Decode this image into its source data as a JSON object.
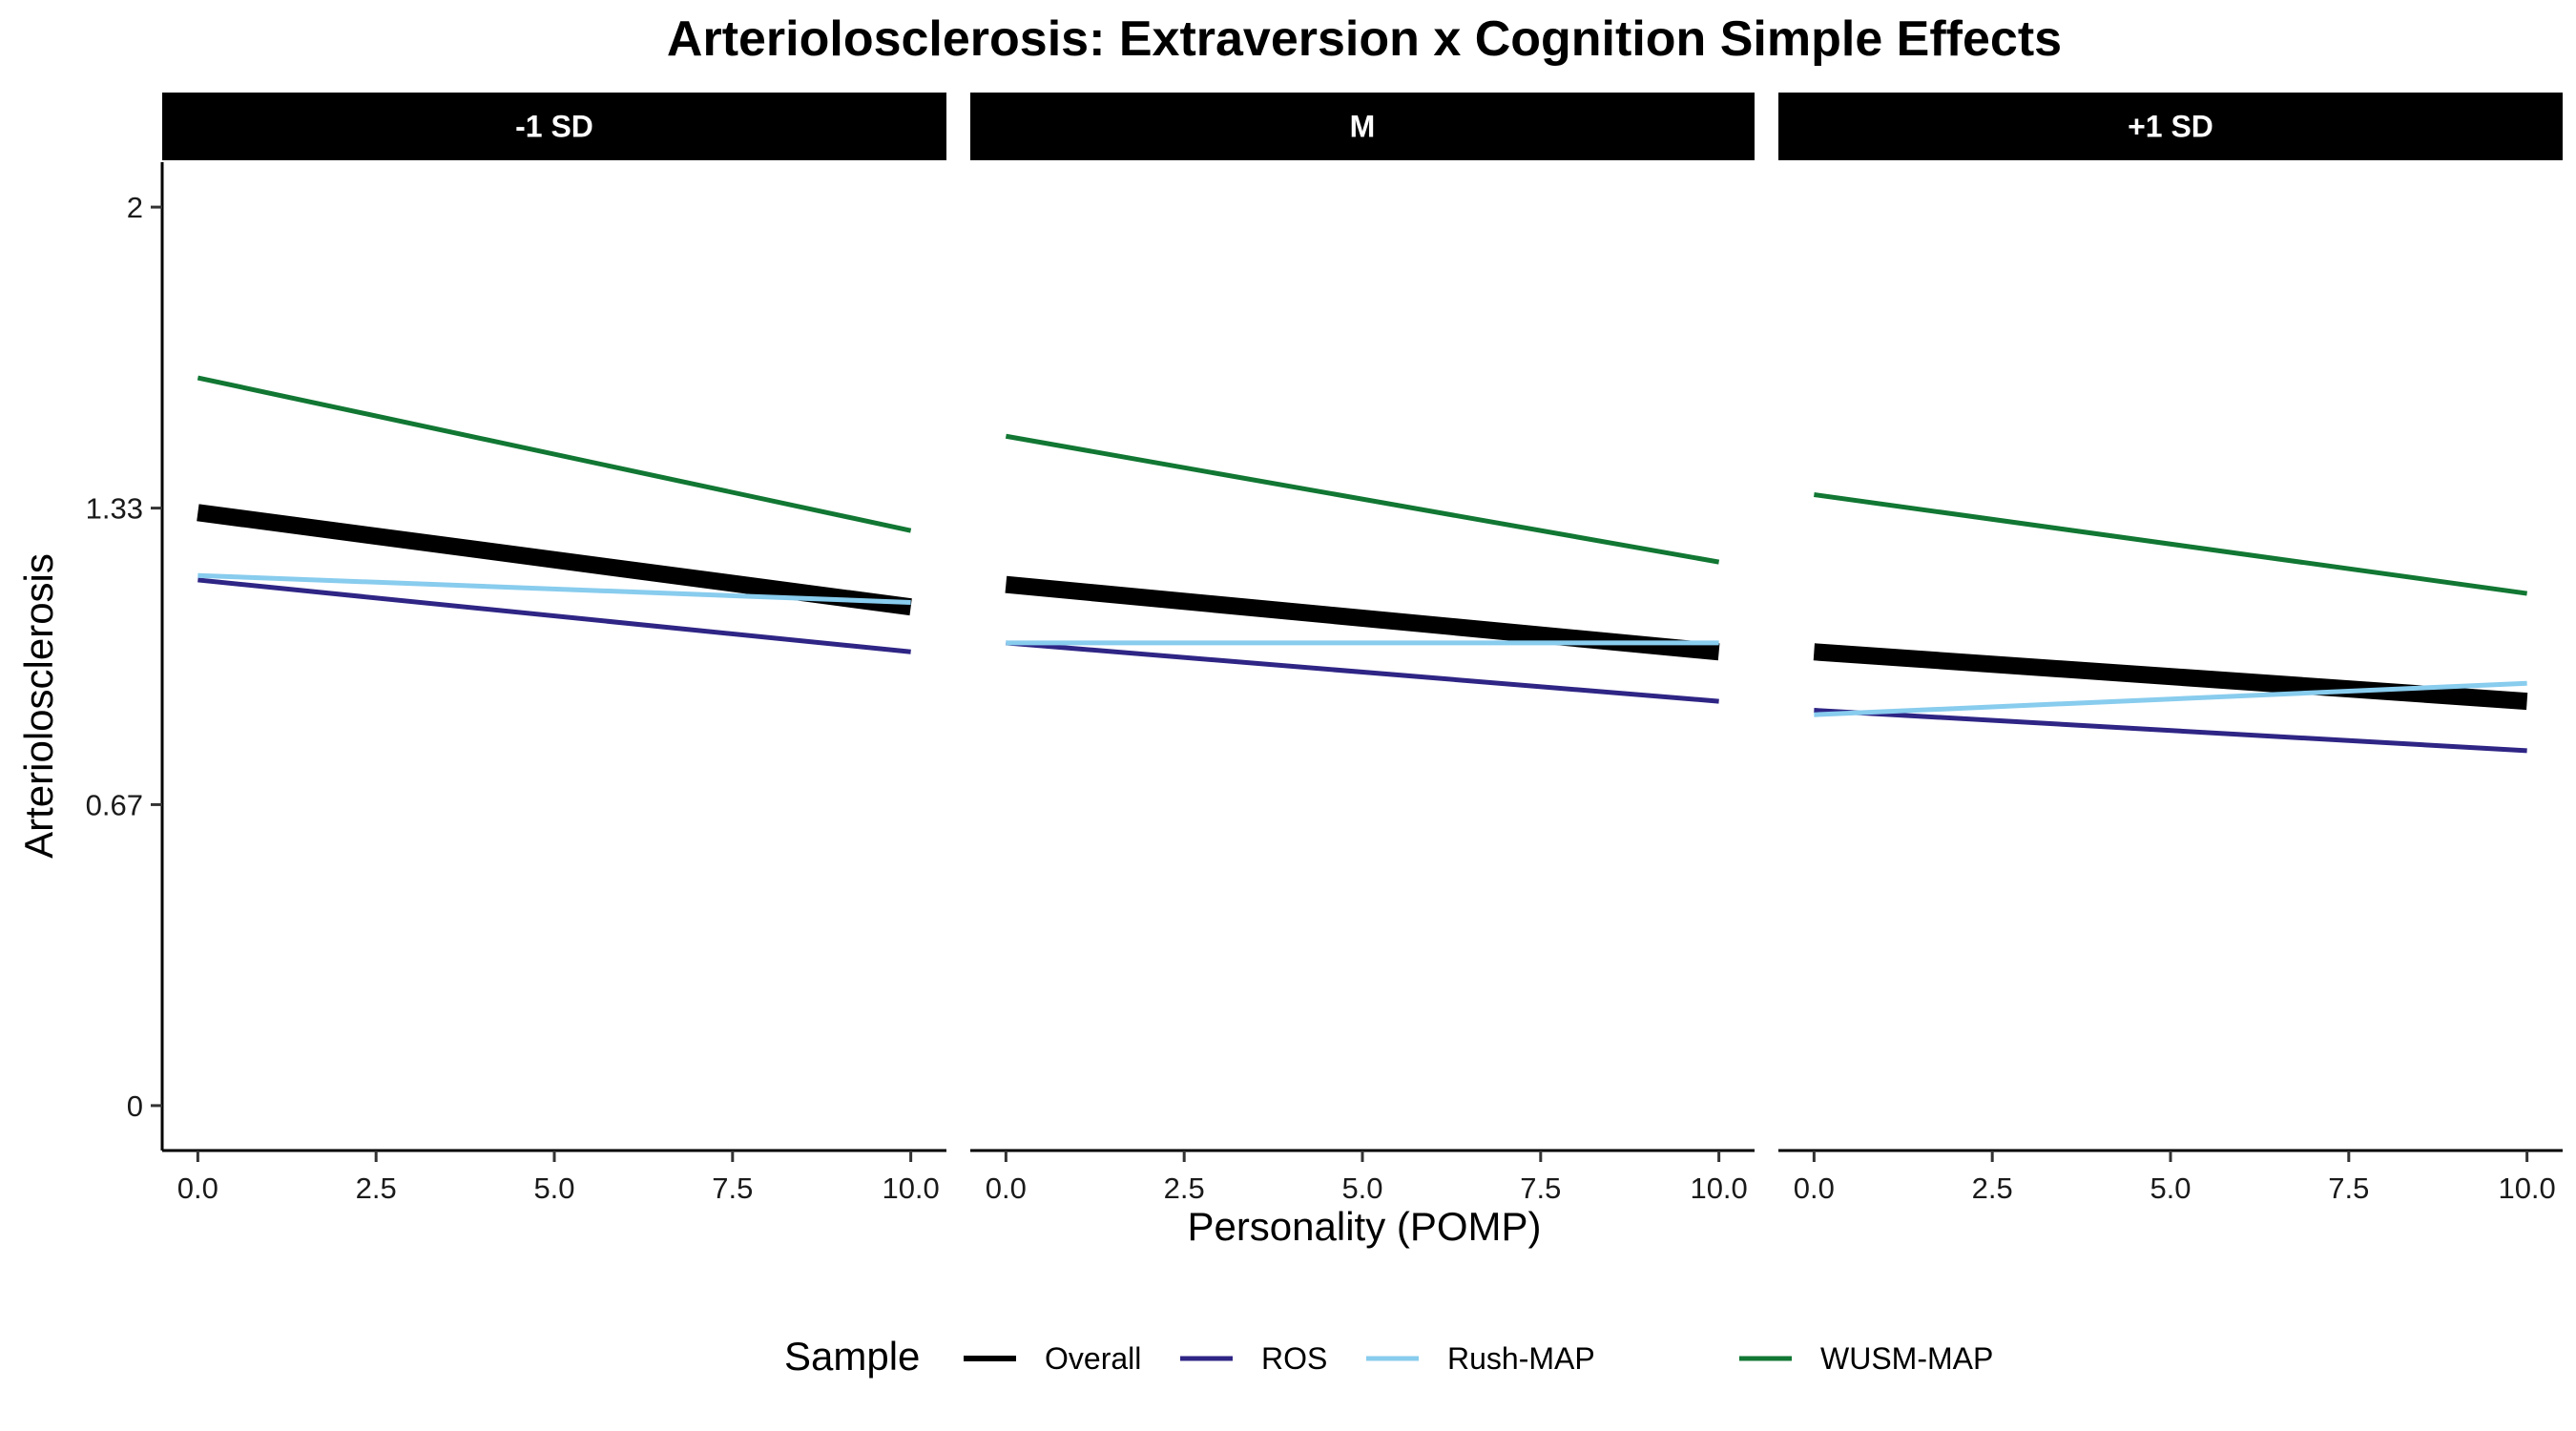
{
  "chart_data": {
    "type": "line",
    "title": "Arteriolosclerosis: Extraversion x Cognition Simple Effects",
    "xlabel": "Personality (POMP)",
    "ylabel": "Arteriolosclerosis",
    "xlim": [
      -0.5,
      10.5
    ],
    "ylim": [
      -0.1,
      2.1
    ],
    "x_ticks": [
      0,
      2.5,
      5,
      7.5,
      10
    ],
    "x_tick_labels": [
      "0.0",
      "2.5",
      "5.0",
      "7.5",
      "10.0"
    ],
    "y_ticks": [
      0,
      0.67,
      1.33,
      2
    ],
    "y_tick_labels": [
      "0",
      "0.67",
      "1.33",
      "2"
    ],
    "grid": false,
    "legend_title": "Sample",
    "legend_position": "bottom",
    "series_styles": [
      {
        "name": "Overall",
        "color": "#000000",
        "weight": "thick"
      },
      {
        "name": "ROS",
        "color": "#2E2585",
        "weight": "thin"
      },
      {
        "name": "Rush-MAP",
        "color": "#88CCEE",
        "weight": "thin"
      },
      {
        "name": "WUSM-MAP",
        "color": "#117733",
        "weight": "thin"
      }
    ],
    "panels": [
      {
        "label": "-1 SD",
        "series": [
          {
            "name": "Overall",
            "x": [
              0,
              10
            ],
            "y": [
              1.32,
              1.11
            ]
          },
          {
            "name": "ROS",
            "x": [
              0,
              10
            ],
            "y": [
              1.17,
              1.01
            ]
          },
          {
            "name": "Rush-MAP",
            "x": [
              0,
              10
            ],
            "y": [
              1.18,
              1.12
            ]
          },
          {
            "name": "WUSM-MAP",
            "x": [
              0,
              10
            ],
            "y": [
              1.62,
              1.28
            ]
          }
        ]
      },
      {
        "label": "M",
        "series": [
          {
            "name": "Overall",
            "x": [
              0,
              10
            ],
            "y": [
              1.16,
              1.01
            ]
          },
          {
            "name": "ROS",
            "x": [
              0,
              10
            ],
            "y": [
              1.03,
              0.9
            ]
          },
          {
            "name": "Rush-MAP",
            "x": [
              0,
              10
            ],
            "y": [
              1.03,
              1.03
            ]
          },
          {
            "name": "WUSM-MAP",
            "x": [
              0,
              10
            ],
            "y": [
              1.49,
              1.21
            ]
          }
        ]
      },
      {
        "label": "+1 SD",
        "series": [
          {
            "name": "Overall",
            "x": [
              0,
              10
            ],
            "y": [
              1.01,
              0.9
            ]
          },
          {
            "name": "ROS",
            "x": [
              0,
              10
            ],
            "y": [
              0.88,
              0.79
            ]
          },
          {
            "name": "Rush-MAP",
            "x": [
              0,
              10
            ],
            "y": [
              0.87,
              0.94
            ]
          },
          {
            "name": "WUSM-MAP",
            "x": [
              0,
              10
            ],
            "y": [
              1.36,
              1.14
            ]
          }
        ]
      }
    ]
  }
}
